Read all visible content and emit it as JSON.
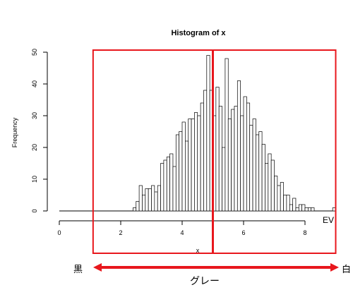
{
  "chart_data": {
    "type": "bar",
    "title": "Histogram of x",
    "xlabel": "x",
    "ylabel": "Frequency",
    "xlim": [
      0,
      9
    ],
    "ylim": [
      0,
      50
    ],
    "x_ticks": [
      0,
      2,
      4,
      6,
      8
    ],
    "y_ticks": [
      0,
      10,
      20,
      30,
      40,
      50
    ],
    "bin_width": 0.1,
    "bin_start": 2.4,
    "values": [
      1,
      3,
      8,
      5,
      7,
      7,
      8,
      6,
      8,
      15,
      16,
      17,
      18,
      14,
      24,
      25,
      28,
      22,
      29,
      29,
      31,
      30,
      34,
      38,
      49,
      38,
      30,
      39,
      33,
      20,
      48,
      29,
      32,
      33,
      41,
      30,
      36,
      34,
      27,
      29,
      24,
      25,
      21,
      15,
      18,
      16,
      11,
      8,
      9,
      5,
      5,
      2,
      4,
      1,
      2,
      2,
      1,
      1,
      1
    ],
    "outlier": {
      "x": 9.0,
      "value": 1
    },
    "grid": false,
    "legend": "none"
  },
  "overlay": {
    "ev_label": "EV",
    "black_label": "黒",
    "white_label": "白",
    "gray_label": "グレー",
    "marker_x": 5.0,
    "box_range": [
      1.1,
      9.0
    ],
    "accent_color": "#e8171d"
  }
}
